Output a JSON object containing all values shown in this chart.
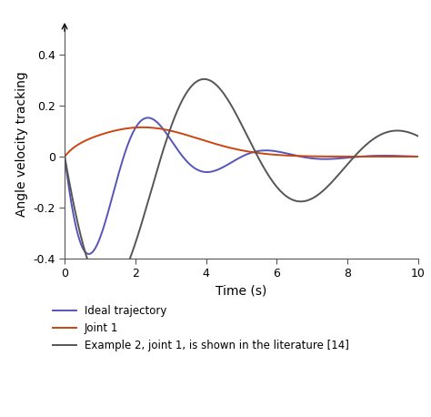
{
  "title": "",
  "xlabel": "Time (s)",
  "ylabel": "Angle velocity tracking",
  "xlim": [
    0,
    10
  ],
  "ylim": [
    -0.4,
    0.5
  ],
  "xticks": [
    0,
    2,
    4,
    6,
    8,
    10
  ],
  "yticks": [
    -0.4,
    -0.2,
    0,
    0.2,
    0.4
  ],
  "legend": [
    {
      "label": "Ideal trajectory",
      "color": "#5555bb",
      "lw": 1.4
    },
    {
      "label": "Joint 1",
      "color": "#cc4411",
      "lw": 1.4
    },
    {
      "label": "Example 2, joint 1, is shown in the literature [14]",
      "color": "#555555",
      "lw": 1.4
    }
  ],
  "background_color": "#ffffff",
  "blue_params": {
    "A": -0.58,
    "omega": 1.88,
    "alpha": 0.55
  },
  "dark_params": {
    "A": -0.68,
    "omega": 1.15,
    "alpha": 0.2
  },
  "orange_params": {
    "peak": 0.115,
    "peak_t": 2.2,
    "sigma": 1.6,
    "rise": 4.0
  }
}
